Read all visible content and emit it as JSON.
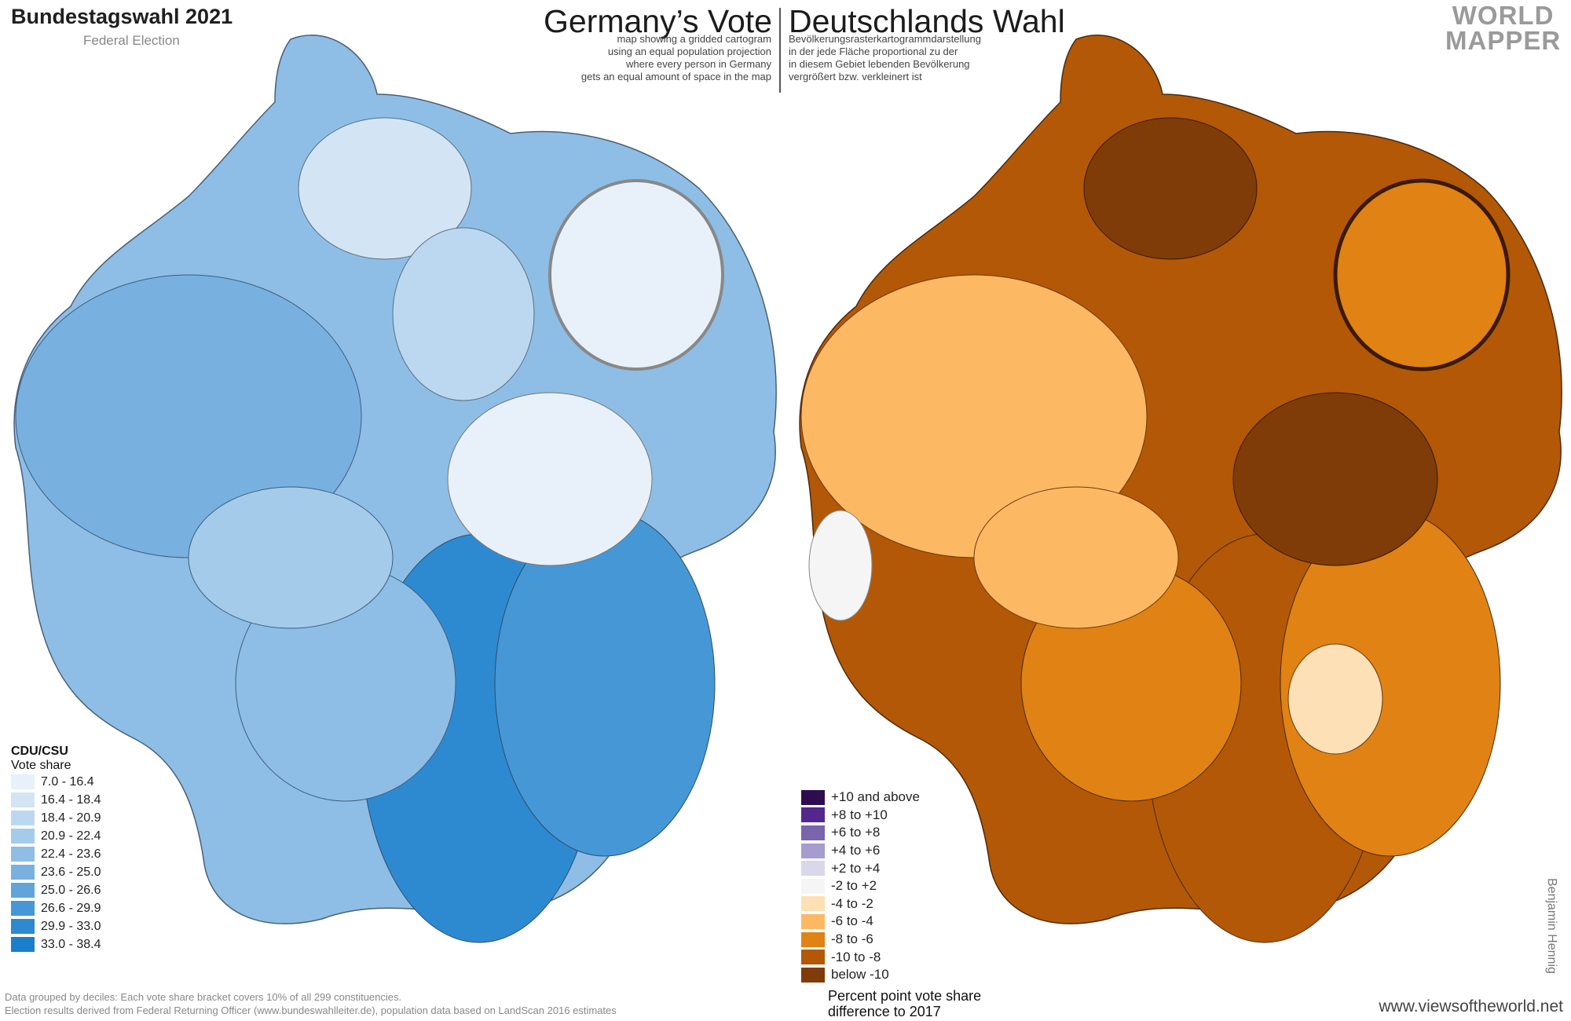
{
  "header": {
    "title": "Bundestagswahl 2021",
    "subtitle": "Federal Election",
    "headline_en": "Germany’s Vote",
    "headline_de": "Deutschlands Wahl",
    "desc_en": "map showing a gridded cartogram\nusing an equal population projection\nwhere every person in Germany\ngets an equal amount of space in the map",
    "desc_de": "Bevölkerungsrasterkartogrammdarstellung\nin der jede Fläche proportional zu der\nin diesem Gebiet lebenden Bevölkerung\nvergrößert bzw. verkleinert ist",
    "logo_line1": "WORLD",
    "logo_line2": "MAPPER"
  },
  "legend_left": {
    "party": "CDU/CSU",
    "measure": "Vote share",
    "items": [
      {
        "label": "7.0 - 16.4",
        "color": "#e8f1fa"
      },
      {
        "label": "16.4 - 18.4",
        "color": "#d3e5f5"
      },
      {
        "label": "18.4 - 20.9",
        "color": "#bcd8f0"
      },
      {
        "label": "20.9 - 22.4",
        "color": "#a5cbea"
      },
      {
        "label": "22.4 - 23.6",
        "color": "#8ebee5"
      },
      {
        "label": "23.6 - 25.0",
        "color": "#78b1df"
      },
      {
        "label": "25.0 - 26.6",
        "color": "#60a4da"
      },
      {
        "label": "26.6 - 29.9",
        "color": "#4697d5"
      },
      {
        "label": "29.9 - 33.0",
        "color": "#2e8ad0"
      },
      {
        "label": "33.0 - 38.4",
        "color": "#1a7ecb"
      }
    ]
  },
  "legend_right": {
    "items": [
      {
        "label": "+10 and above",
        "color": "#2e0d4f"
      },
      {
        "label": "+8 to +10",
        "color": "#54278f"
      },
      {
        "label": "+6 to +8",
        "color": "#7a64ad"
      },
      {
        "label": "+4 to +6",
        "color": "#a69cce"
      },
      {
        "label": "+2 to +4",
        "color": "#d9d7ea"
      },
      {
        "label": "-2 to +2",
        "color": "#f5f5f5"
      },
      {
        "label": "-4 to -2",
        "color": "#fee0b6"
      },
      {
        "label": "-6 to -4",
        "color": "#fdb863"
      },
      {
        "label": "-8 to -6",
        "color": "#e08214"
      },
      {
        "label": "-10 to -8",
        "color": "#b35806"
      },
      {
        "label": "below -10",
        "color": "#7f3b08"
      }
    ],
    "note": "Percent point vote share\ndifference to 2017"
  },
  "footer": {
    "note": "Data grouped by deciles: Each vote share bracket covers 10% of all 299 constituencies.\nElection results derived from Federal Returning Officer (www.bundeswahlleiter.de), population data based on LandScan 2016 estimates",
    "credit": "Benjamin Hennig",
    "website": "www.viewsoftheworld.net"
  },
  "colors": {
    "map_left_dark": "#1a7ecb",
    "map_left_mid": "#8ebee5",
    "map_left_light": "#e8f1fa",
    "map_right_dark": "#7f3b08",
    "map_right_mid": "#e08214",
    "map_right_light": "#fee0b6"
  }
}
